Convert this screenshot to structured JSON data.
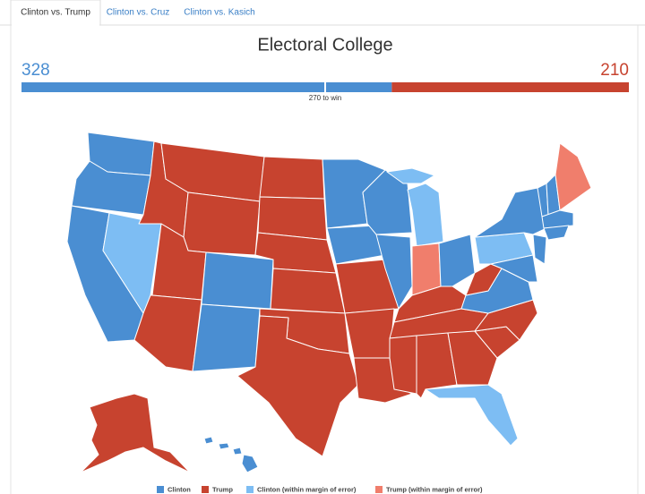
{
  "tabs": [
    "Clinton vs. Trump",
    "Clinton vs. Cruz",
    "Clinton vs. Kasich"
  ],
  "active_tab": 0,
  "title": "Electoral College",
  "candidates": [
    {
      "score": 328,
      "color": "#4a8ed2"
    },
    {
      "score": 210,
      "color": "#c7432f"
    }
  ],
  "win_label": "270 to win",
  "legend": [
    {
      "name": "Clinton",
      "color": "#4a8ed2"
    },
    {
      "name": "Trump",
      "color": "#c7432f"
    },
    {
      "name": "Clinton (within margin of error)",
      "color": "#7dbdf3"
    },
    {
      "name": "Trump (within margin of error)",
      "color": "#f07e6c"
    }
  ]
}
